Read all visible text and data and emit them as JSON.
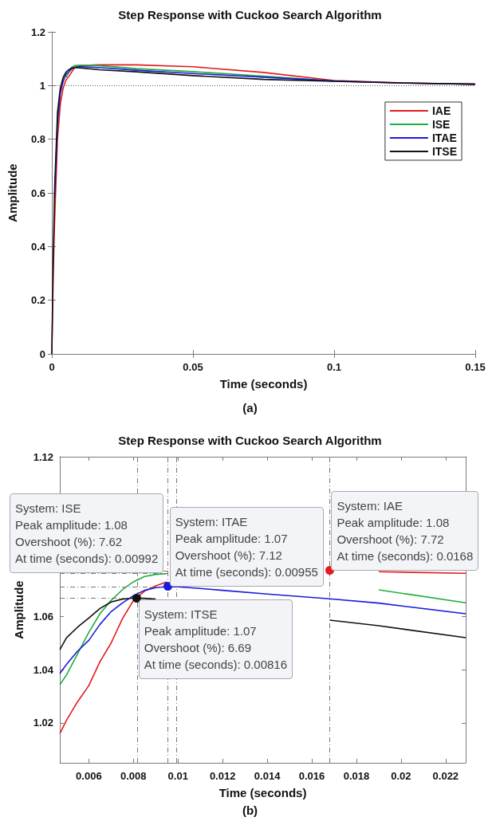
{
  "chart_data": [
    {
      "type": "line",
      "title": "Step Response with Cuckoo Search Algorithm",
      "xlabel": "Time (seconds)",
      "ylabel": "Amplitude",
      "x": [
        0,
        0.0005,
        0.001,
        0.002,
        0.003,
        0.004,
        0.005,
        0.006,
        0.007,
        0.008,
        0.01,
        0.0168,
        0.03,
        0.05,
        0.075,
        0.1,
        0.125,
        0.15
      ],
      "series": [
        {
          "name": "IAE",
          "color": "#e41a1c",
          "values": [
            0,
            0.3,
            0.5,
            0.8,
            0.93,
            0.99,
            1.02,
            1.034,
            1.05,
            1.066,
            1.074,
            1.077,
            1.077,
            1.07,
            1.049,
            1.019,
            1.01,
            1.005
          ]
        },
        {
          "name": "ISE",
          "color": "#1fae3f",
          "values": [
            null,
            null,
            null,
            null,
            null,
            null,
            1.03,
            1.05,
            1.068,
            1.074,
            1.076,
            1.074,
            1.063,
            1.052,
            1.035,
            1.017,
            null,
            null
          ]
        },
        {
          "name": "ITAE",
          "color": "#1a1adb",
          "values": [
            null,
            null,
            0.58,
            0.86,
            0.97,
            1.015,
            1.042,
            1.051,
            1.062,
            1.068,
            1.071,
            1.067,
            1.057,
            1.045,
            1.031,
            1.017,
            1.009,
            1.005
          ]
        },
        {
          "name": "ITSE",
          "color": "#111111",
          "values": [
            0,
            0.37,
            0.62,
            0.9,
            0.99,
            1.03,
            1.05,
            1.059,
            1.065,
            1.067,
            1.066,
            1.059,
            1.051,
            1.037,
            1.023,
            1.016,
            1.009,
            1.005
          ]
        }
      ],
      "xlim": [
        0,
        0.15
      ],
      "xticks": [
        0,
        0.05,
        0.1,
        0.15
      ],
      "ylim": [
        0,
        1.2
      ],
      "yticks": [
        0,
        0.2,
        0.4,
        0.6,
        0.8,
        1,
        1.2
      ],
      "ref_lines": [
        {
          "axis": "y",
          "value": 1,
          "line_style": "dotted",
          "color": "#555555"
        }
      ],
      "legend": "right",
      "grid": false,
      "annotations": [
        "(a)"
      ]
    },
    {
      "type": "line",
      "title": "Step Response with Cuckoo Search Algorithm",
      "xlabel": "Time (seconds)",
      "ylabel": "Amplitude",
      "x": [
        0.0047,
        0.005,
        0.0055,
        0.006,
        0.0065,
        0.007,
        0.0075,
        0.008,
        0.0085,
        0.009,
        0.0095,
        0.01,
        0.011,
        0.012,
        0.014,
        0.0168,
        0.019,
        0.0229
      ],
      "series": [
        {
          "color": "#e41a1c",
          "values": [
            1.016,
            1.021,
            1.028,
            1.034,
            1.043,
            1.05,
            1.059,
            1.066,
            1.0695,
            1.0715,
            1.073,
            null,
            null,
            null,
            null,
            null,
            1.0768,
            1.0762
          ]
        },
        {
          "color": "#1fae3f",
          "values": [
            1.0343,
            1.038,
            1.046,
            1.054,
            1.061,
            1.066,
            1.07,
            1.073,
            1.075,
            1.0758,
            1.0761,
            null,
            null,
            null,
            null,
            null,
            1.07,
            1.0651
          ]
        },
        {
          "color": "#1a1adb",
          "values": [
            1.0385,
            1.042,
            1.047,
            1.051,
            1.057,
            1.0618,
            1.065,
            1.0678,
            1.0698,
            1.0708,
            1.0712,
            1.0711,
            1.0705,
            1.0698,
            1.0684,
            1.0666,
            1.065,
            1.061
          ]
        },
        {
          "color": "#111111",
          "values": [
            1.0475,
            1.052,
            1.056,
            1.0594,
            1.063,
            1.0654,
            1.0665,
            1.0669,
            1.0668,
            1.0665,
            null,
            null,
            null,
            null,
            null,
            1.0586,
            1.0565,
            1.052
          ]
        }
      ],
      "xlim": [
        0.0047,
        0.0229
      ],
      "xticks": [
        0.006,
        0.008,
        0.01,
        0.012,
        0.014,
        0.016,
        0.018,
        0.02,
        0.022
      ],
      "ylim": [
        1.005,
        1.12
      ],
      "yticks": [
        1.02,
        1.04,
        1.06,
        1.12
      ],
      "ref_lines": [
        {
          "axis": "x",
          "value": 0.00816,
          "line_style": "dashed",
          "color": "#777777"
        },
        {
          "axis": "x",
          "value": 0.00955,
          "line_style": "dashed",
          "color": "#777777"
        },
        {
          "axis": "x",
          "value": 0.00992,
          "line_style": "dashed",
          "color": "#777777"
        },
        {
          "axis": "x",
          "value": 0.0168,
          "line_style": "dashed",
          "color": "#777777"
        },
        {
          "axis": "y",
          "value": 1.0669,
          "line_style": "dashed",
          "color": "#777777"
        },
        {
          "axis": "y",
          "value": 1.0712,
          "line_style": "dashed",
          "color": "#777777"
        },
        {
          "axis": "y",
          "value": 1.0762,
          "line_style": "dashed",
          "color": "#777777"
        },
        {
          "axis": "y",
          "value": 1.0772,
          "line_style": "dashed",
          "color": "#777777"
        }
      ],
      "grid": false,
      "annotations": [
        {
          "text": "System: IAE\nPeak amplitude: 1.08\nOvershoot (%): 7.72\nAt time (seconds): 0.0168",
          "x": 0.0168,
          "y": 1.0772
        },
        {
          "text": "System: ISE\nPeak amplitude: 1.08\nOvershoot (%): 7.62\nAt time (seconds): 0.00992",
          "x": 0.00992,
          "y": 1.0762
        },
        {
          "text": "System: ITAE\nPeak amplitude: 1.07\nOvershoot (%): 7.12\nAt time (seconds): 0.00955",
          "x": 0.00955,
          "y": 1.0712
        },
        {
          "text": "System: ITSE\nPeak amplitude: 1.07\nOvershoot (%): 6.69\nAt time (seconds): 0.00816",
          "x": 0.00816,
          "y": 1.0669
        },
        "(b)"
      ]
    }
  ]
}
